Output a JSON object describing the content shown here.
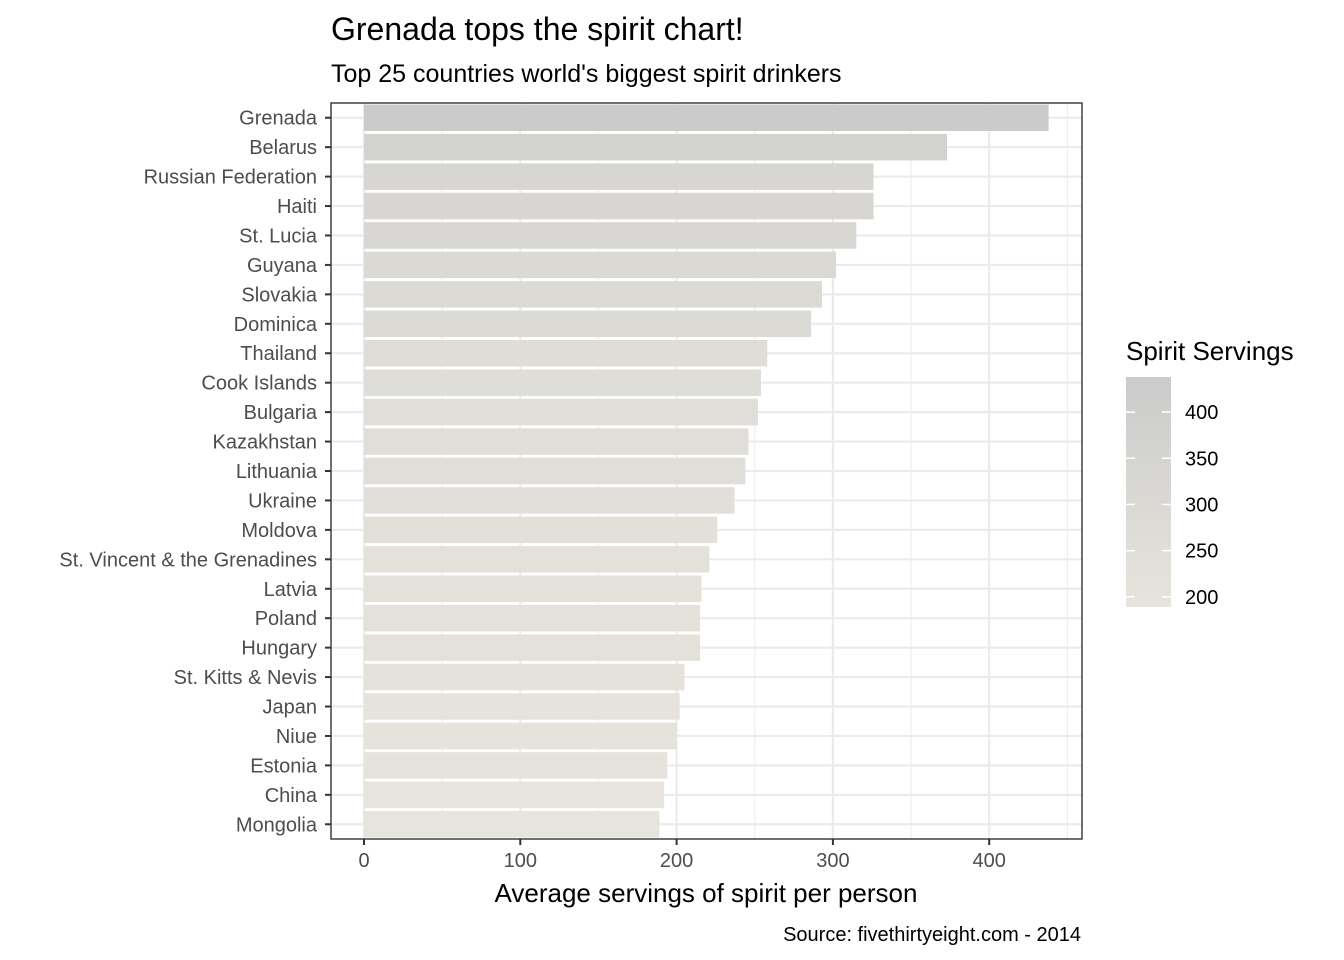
{
  "chart_data": {
    "type": "bar",
    "orientation": "horizontal",
    "title": "Grenada tops the spirit chart!",
    "subtitle": "Top 25 countries world's biggest spirit drinkers",
    "xlabel": "Average servings of spirit per person",
    "ylabel": "",
    "caption": "Source: fivethirtyeight.com - 2014",
    "xlim": [
      0,
      460
    ],
    "x_ticks": [
      0,
      100,
      200,
      300,
      400
    ],
    "grid": true,
    "categories": [
      "Grenada",
      "Belarus",
      "Russian Federation",
      "Haiti",
      "St. Lucia",
      "Guyana",
      "Slovakia",
      "Dominica",
      "Thailand",
      "Cook Islands",
      "Bulgaria",
      "Kazakhstan",
      "Lithuania",
      "Ukraine",
      "Moldova",
      "St. Vincent & the Grenadines",
      "Latvia",
      "Poland",
      "Hungary",
      "St. Kitts & Nevis",
      "Japan",
      "Niue",
      "Estonia",
      "China",
      "Mongolia"
    ],
    "values": [
      438,
      373,
      326,
      326,
      315,
      302,
      293,
      286,
      258,
      254,
      252,
      246,
      244,
      237,
      226,
      221,
      216,
      215,
      215,
      205,
      202,
      200,
      194,
      192,
      189
    ],
    "legend": {
      "title": "Spirit Servings",
      "placement": "right",
      "ticks": [
        200,
        250,
        300,
        350,
        400
      ],
      "range": [
        189,
        438
      ],
      "color_low": "#e6e4dc",
      "color_high": "#cbcbcb"
    }
  }
}
